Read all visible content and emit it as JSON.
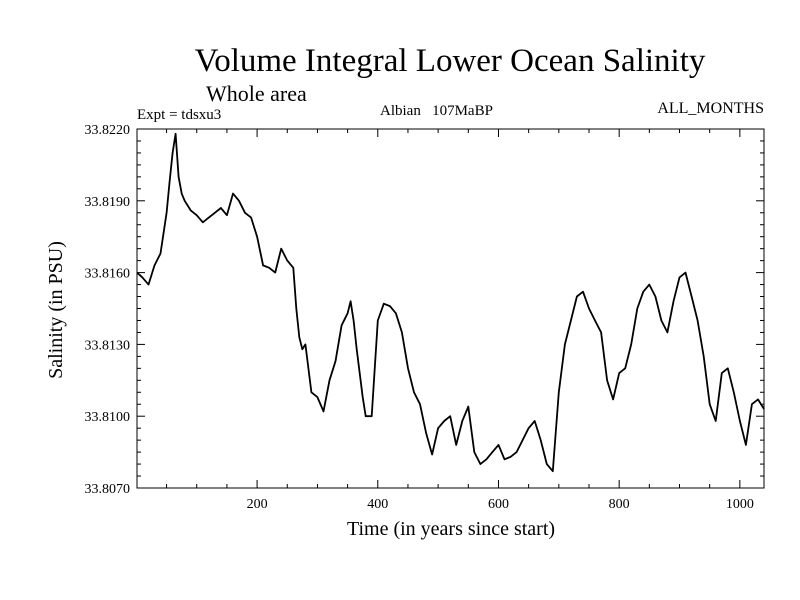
{
  "chart_data": {
    "type": "line",
    "title": "Volume Integral Lower Ocean Salinity",
    "subtitle": "Whole area",
    "expt_label": "Expt = tdsxu3",
    "period_label": "Albian   107MaBP",
    "months_label": "ALL_MONTHS",
    "xlabel": "Time (in years since start)",
    "ylabel": "Salinity (in PSU)",
    "xlim": [
      1,
      1040
    ],
    "ylim": [
      33.807,
      33.822
    ],
    "x_ticks": [
      200,
      400,
      600,
      800,
      1000
    ],
    "x_tick_labels": [
      "200",
      "400",
      "600",
      "800",
      "1000"
    ],
    "y_ticks": [
      33.807,
      33.81,
      33.813,
      33.816,
      33.819,
      33.822
    ],
    "y_tick_labels": [
      "33.8070",
      "33.8100",
      "33.8130",
      "33.8160",
      "33.8190",
      "33.8220"
    ],
    "series": [
      {
        "name": "Salinity",
        "x": [
          1,
          10,
          20,
          30,
          40,
          50,
          55,
          60,
          65,
          70,
          75,
          80,
          90,
          100,
          110,
          120,
          130,
          140,
          150,
          160,
          170,
          180,
          190,
          200,
          210,
          220,
          230,
          240,
          250,
          260,
          265,
          270,
          275,
          280,
          285,
          290,
          300,
          310,
          320,
          330,
          340,
          350,
          355,
          360,
          365,
          370,
          375,
          380,
          390,
          400,
          410,
          420,
          430,
          440,
          450,
          460,
          470,
          480,
          490,
          500,
          510,
          520,
          530,
          540,
          550,
          560,
          570,
          580,
          590,
          600,
          610,
          620,
          630,
          640,
          650,
          660,
          670,
          680,
          690,
          700,
          710,
          720,
          730,
          740,
          750,
          760,
          770,
          780,
          790,
          800,
          810,
          820,
          830,
          840,
          850,
          860,
          870,
          880,
          890,
          900,
          910,
          920,
          930,
          940,
          950,
          960,
          970,
          980,
          990,
          1000,
          1010,
          1020,
          1030,
          1040
        ],
        "values": [
          33.816,
          33.8158,
          33.8155,
          33.8163,
          33.8168,
          33.8185,
          33.8198,
          33.821,
          33.8218,
          33.82,
          33.8193,
          33.819,
          33.8186,
          33.8184,
          33.8181,
          33.8183,
          33.8185,
          33.8187,
          33.8184,
          33.8193,
          33.819,
          33.8185,
          33.8183,
          33.8175,
          33.8163,
          33.8162,
          33.816,
          33.817,
          33.8165,
          33.8162,
          33.8145,
          33.8133,
          33.8128,
          33.813,
          33.812,
          33.811,
          33.8108,
          33.8102,
          33.8115,
          33.8123,
          33.8138,
          33.8143,
          33.8148,
          33.814,
          33.8128,
          33.8118,
          33.8108,
          33.81,
          33.81,
          33.814,
          33.8147,
          33.8146,
          33.8143,
          33.8135,
          33.812,
          33.811,
          33.8105,
          33.8093,
          33.8084,
          33.8095,
          33.8098,
          33.81,
          33.8088,
          33.8098,
          33.8104,
          33.8085,
          33.808,
          33.8082,
          33.8085,
          33.8088,
          33.8082,
          33.8083,
          33.8085,
          33.809,
          33.8095,
          33.8098,
          33.809,
          33.808,
          33.8077,
          33.811,
          33.813,
          33.814,
          33.815,
          33.8152,
          33.8145,
          33.814,
          33.8135,
          33.8115,
          33.8107,
          33.8118,
          33.812,
          33.813,
          33.8145,
          33.8152,
          33.8155,
          33.815,
          33.814,
          33.8135,
          33.8148,
          33.8158,
          33.816,
          33.815,
          33.814,
          33.8125,
          33.8105,
          33.8098,
          33.8118,
          33.812,
          33.811,
          33.8098,
          33.8088,
          33.8105,
          33.8107,
          33.8103
        ]
      }
    ]
  }
}
